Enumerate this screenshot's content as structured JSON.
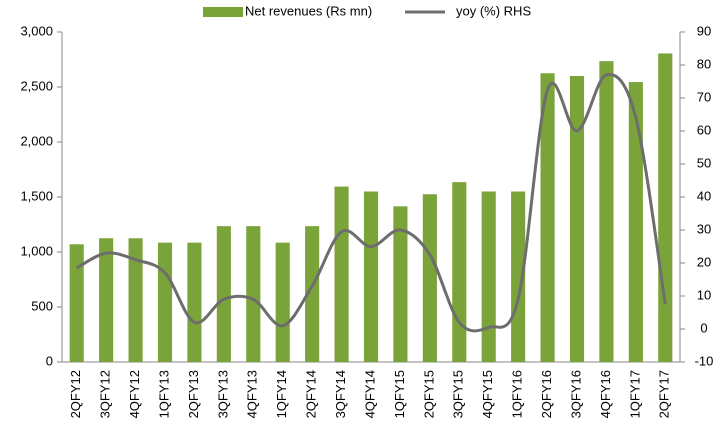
{
  "chart_data": {
    "type": "bar_line",
    "categories": [
      "2QFY12",
      "3QFY12",
      "4QFY12",
      "1QFY13",
      "2QFY13",
      "3QFY13",
      "4QFY13",
      "1QFY14",
      "2QFY14",
      "3QFY14",
      "4QFY14",
      "1QFY15",
      "2QFY15",
      "3QFY15",
      "4QFY15",
      "1QFY16",
      "2QFY16",
      "3QFY16",
      "4QFY16",
      "1QFY17",
      "2QFY17"
    ],
    "series": [
      {
        "name": "Net revenues (Rs mn)",
        "type": "bar",
        "color": "#7aa33a",
        "values": [
          1070,
          1125,
          1125,
          1085,
          1085,
          1235,
          1235,
          1085,
          1235,
          1595,
          1550,
          1415,
          1525,
          1635,
          1550,
          1550,
          2625,
          2600,
          2735,
          2545,
          2805
        ]
      },
      {
        "name": "yoy (%) RHS",
        "type": "line",
        "axis": "y2",
        "color": "#6d6d6d",
        "values": [
          18.5,
          23,
          21,
          17,
          2,
          9,
          9,
          1,
          13,
          29.5,
          25,
          30,
          22.5,
          2,
          0.5,
          9,
          72.5,
          60,
          77,
          64,
          7.5
        ]
      }
    ],
    "ylim": [
      0,
      3000
    ],
    "yticks": [
      0,
      500,
      {
        "value": 1000,
        "label": "1,000"
      },
      {
        "value": 1500,
        "label": "1,500"
      },
      {
        "value": 2000,
        "label": "2,000"
      },
      {
        "value": 2500,
        "label": "2,500"
      },
      {
        "value": 3000,
        "label": "3,000"
      }
    ],
    "y2lim": [
      -10,
      90
    ],
    "y2ticks": [
      -10,
      0,
      10,
      20,
      30,
      40,
      50,
      60,
      70,
      80,
      90
    ],
    "grid": false,
    "legend": "top"
  }
}
